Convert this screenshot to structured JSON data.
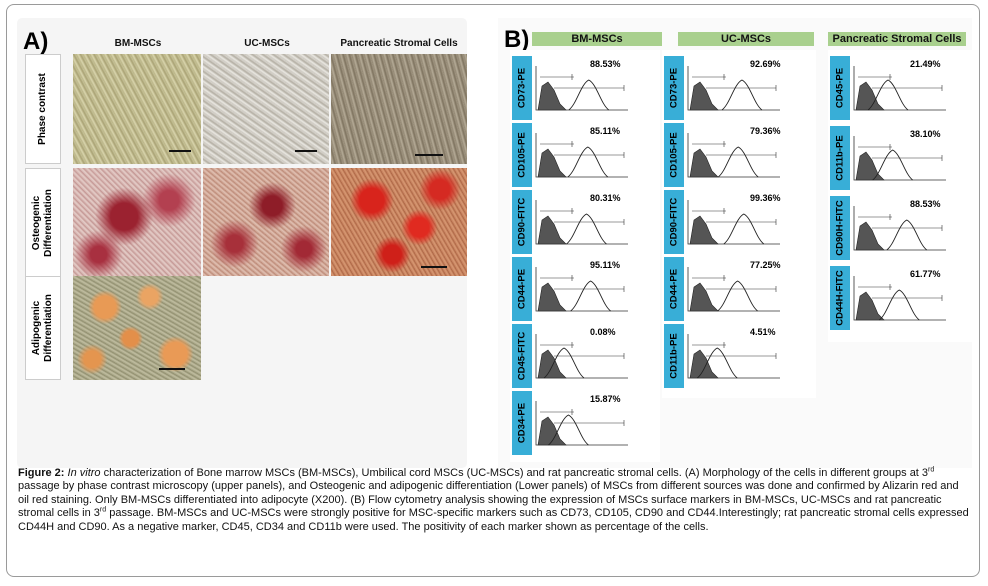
{
  "panel_a": {
    "label": "A)",
    "columns": [
      "BM-MSCs",
      "UC-MSCs",
      "Pancreatic Stromal Cells"
    ],
    "rows": [
      {
        "label": "Phase contrast"
      },
      {
        "label": "Osteogenic Differentiation"
      },
      {
        "label": "Adipogenic Differentiation"
      }
    ]
  },
  "panel_b": {
    "label": "B)",
    "columns": [
      {
        "title": "BM-MSCs",
        "plots": [
          {
            "marker": "CD73-PE",
            "percent": "88.53%"
          },
          {
            "marker": "CD105-PE",
            "percent": "85.11%"
          },
          {
            "marker": "CD90-FITC",
            "percent": "80.31%"
          },
          {
            "marker": "CD44-PE",
            "percent": "95.11%"
          },
          {
            "marker": "CD45-FITC",
            "percent": "0.08%"
          },
          {
            "marker": "CD34-PE",
            "percent": "15.87%"
          }
        ]
      },
      {
        "title": "UC-MSCs",
        "plots": [
          {
            "marker": "CD73-PE",
            "percent": "92.69%"
          },
          {
            "marker": "CD105-PE",
            "percent": "79.36%"
          },
          {
            "marker": "CD90-FITC",
            "percent": "99.36%"
          },
          {
            "marker": "CD44-PE",
            "percent": "77.25%"
          },
          {
            "marker": "CD11b-PE",
            "percent": "4.51%"
          }
        ]
      },
      {
        "title": "Pancreatic Stromal Cells",
        "plots": [
          {
            "marker": "CD45-PE",
            "percent": "21.49%"
          },
          {
            "marker": "CD11b-PE",
            "percent": "38.10%"
          },
          {
            "marker": "CD90H-FITC",
            "percent": "88.53%"
          },
          {
            "marker": "CD44H-FITC",
            "percent": "61.77%"
          }
        ]
      }
    ]
  },
  "caption": {
    "figure_label": "Figure 2:",
    "in_vitro": "In vitro",
    "part1": " characterization of Bone marrow MSCs (BM-MSCs), Umbilical cord MSCs (UC-MSCs) and rat pancreatic stromal cells. (A) Morphology of the cells in different groups at 3",
    "sup1": "rd",
    "part2": " passage by phase contrast microscopy (upper panels), and Osteogenic and adipogenic differentiation (Lower panels) of MSCs from different sources was done and confirmed by Alizarin red and oil red staining. Only BM-MSCs differentiated into adipocyte (X200). (B) Flow cytometry analysis showing the expression of MSCs surface markers in BM-MSCs, UC-MSCs and rat pancreatic stromal cells in 3",
    "sup2": "rd",
    "part3": " passage. BM-MSCs and UC-MSCs were strongly positive for MSC-specific markers such as CD73, CD105, CD90 and CD44.Interestingly; rat pancreatic stromal cells expressed CD44H and CD90. As a negative marker, CD45, CD34 and CD11b were used. The positivity of each marker shown as percentage of the cells."
  }
}
